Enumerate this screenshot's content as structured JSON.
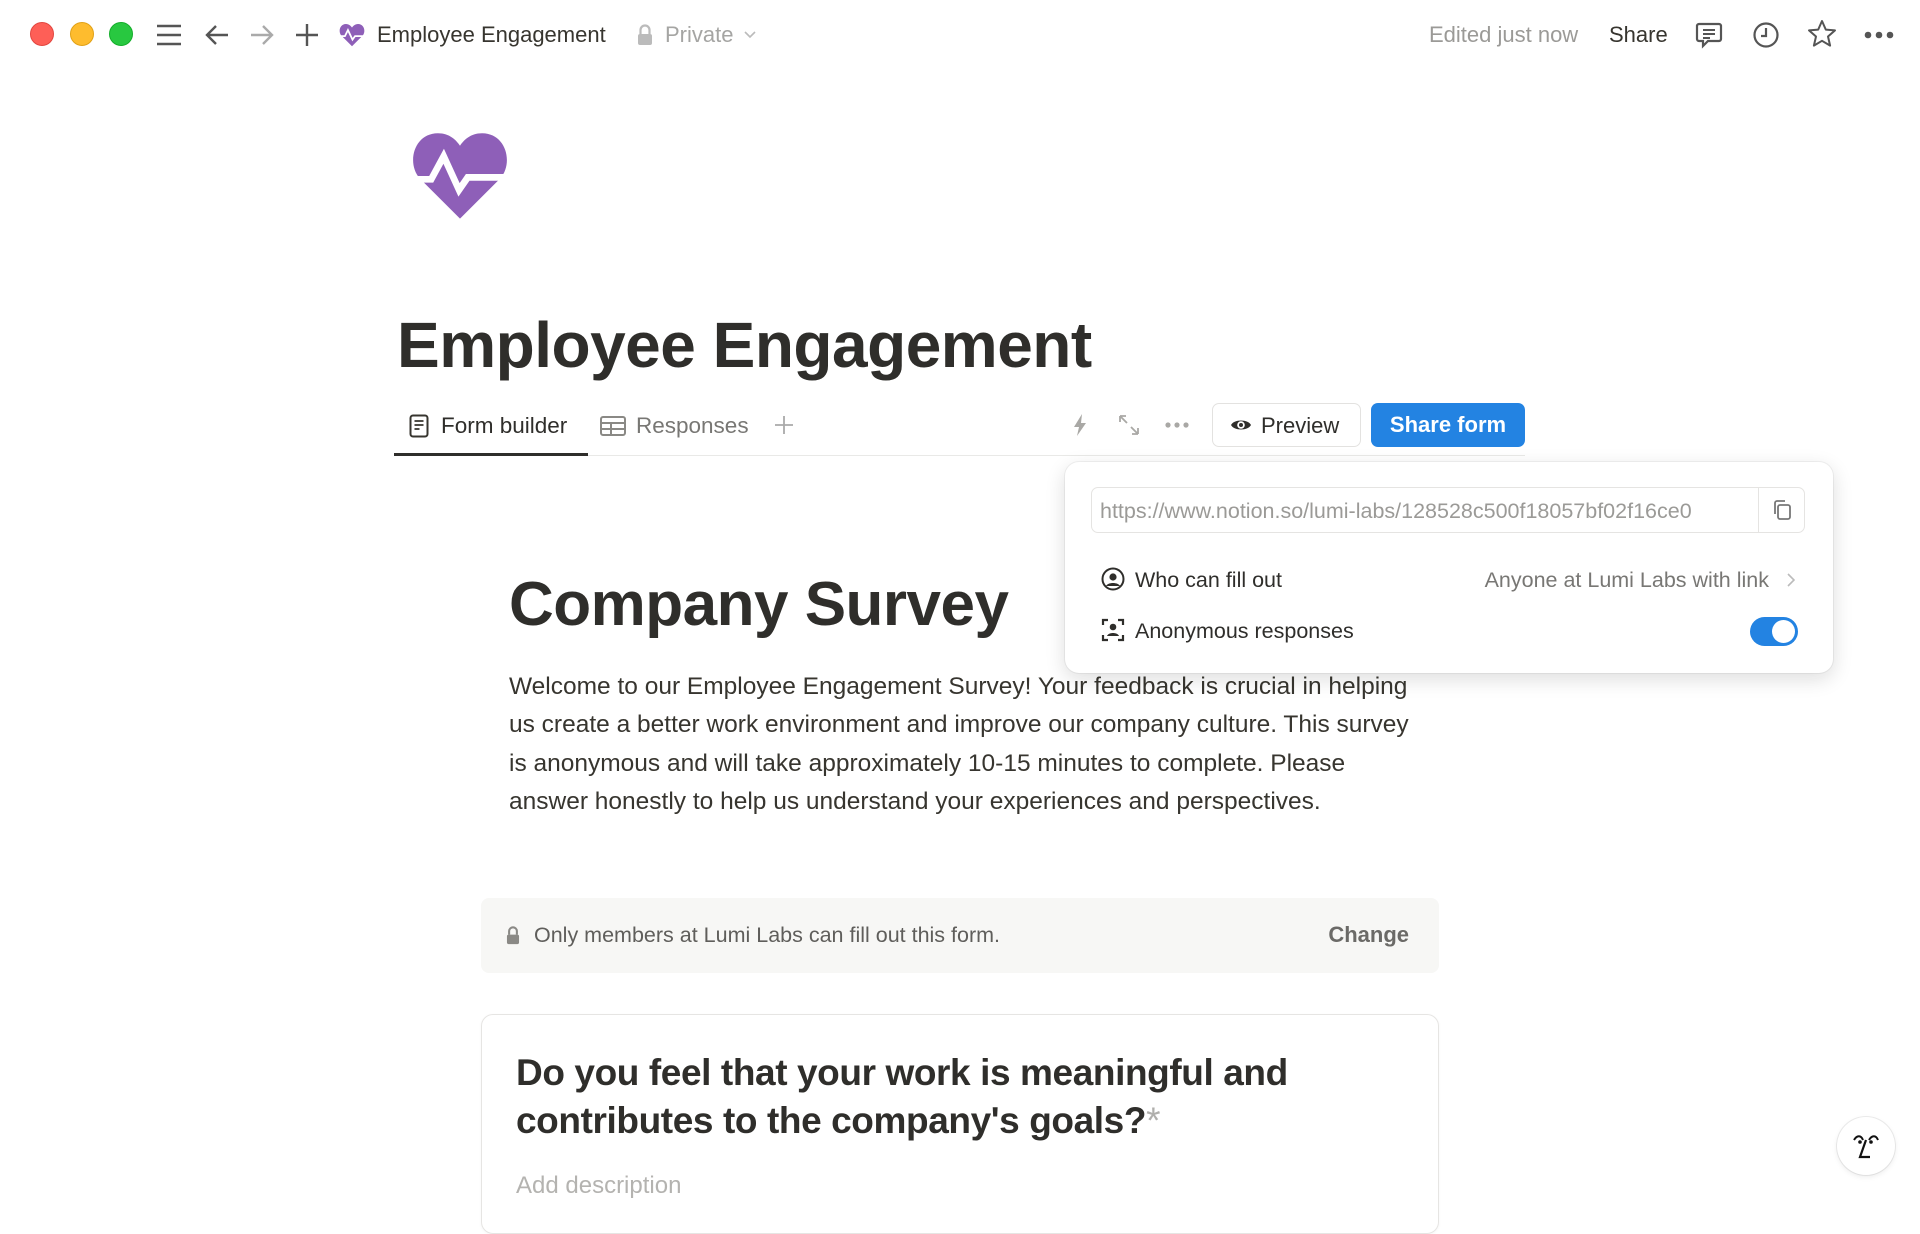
{
  "titlebar": {
    "page_title": "Employee Engagement",
    "privacy": "Private",
    "edited": "Edited just now",
    "share": "Share",
    "icons": [
      "close-dot",
      "minimize-dot",
      "zoom-dot",
      "menu-icon",
      "back-arrow-icon",
      "forward-arrow-icon",
      "plus-icon",
      "heartbeat-icon",
      "lock-icon",
      "chevron-down-icon",
      "comment-icon",
      "clock-icon",
      "star-icon",
      "more-icon"
    ]
  },
  "page": {
    "title": "Employee Engagement",
    "icon": "heart-pulse-purple",
    "accent": "#8e5fb8"
  },
  "tabs": [
    {
      "label": "Form builder",
      "active": true,
      "icon": "form-icon"
    },
    {
      "label": "Responses",
      "active": false,
      "icon": "table-icon"
    }
  ],
  "toolbar": {
    "preview": "Preview",
    "share_form": "Share form",
    "share_color": "#2383e2"
  },
  "share_popup": {
    "url": "https://www.notion.so/lumi-labs/128528c500f18057bf02f16ce0",
    "who_label": "Who can fill out",
    "who_value": "Anyone at Lumi Labs with link",
    "anon_label": "Anonymous responses",
    "anon_enabled": true
  },
  "form": {
    "title": "Company Survey",
    "description": "Welcome to our Employee Engagement Survey! Your feedback is crucial in helping us create a better work environment and improve our company culture. This survey is anonymous and will take approximately 10-15 minutes to complete. Please answer honestly to help us understand your experiences and perspectives.",
    "notice": "Only members at Lumi Labs can fill out this form.",
    "notice_action": "Change",
    "question": "Do you feel that your work is meaningful and contributes to the company's goals?",
    "required_mark": "*",
    "add_description": "Add description"
  }
}
